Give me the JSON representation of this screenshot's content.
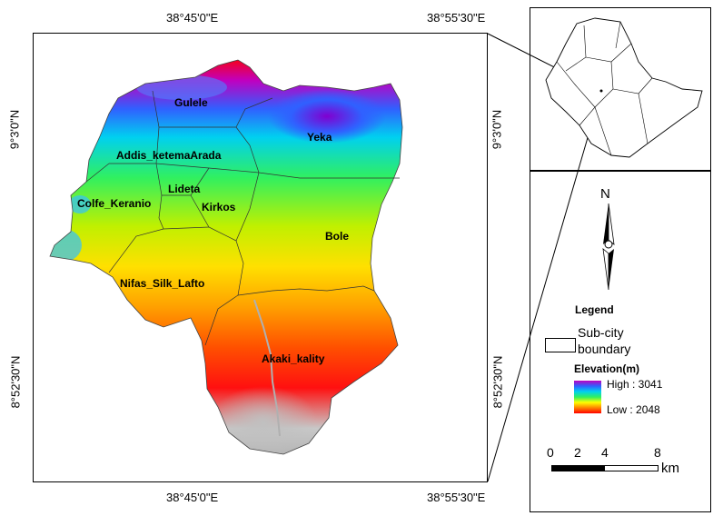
{
  "coordinates": {
    "top_left": "38°45'0\"E",
    "top_right": "38°55'30\"E",
    "bottom_left": "38°45'0\"E",
    "bottom_right": "38°55'30\"E",
    "left_upper": "9°3'0\"N",
    "left_lower": "8°52'30\"N",
    "right_upper": "9°3'0\"N",
    "right_lower": "8°52'30\"N"
  },
  "subcities": {
    "gulele": "Gulele",
    "yeka": "Yeka",
    "addis_ketema_arada": "Addis_ketemaArada",
    "lideta": "Lideta",
    "colfe_keranio": "Colfe_Keranio",
    "kirkos": "Kirkos",
    "bole": "Bole",
    "nifas_silk_lafto": "Nifas_Silk_Lafto",
    "akaki_kality": "Akaki_kality"
  },
  "north_arrow": {
    "label": "N"
  },
  "legend": {
    "title": "Legend",
    "boundary_label_1": "Sub-city",
    "boundary_label_2": "boundary",
    "elevation_title": "Elevation(m)",
    "high": "High : 3041",
    "low": "Low : 2048"
  },
  "scale": {
    "ticks": [
      "0",
      "2",
      "4",
      "8"
    ],
    "unit": "km"
  },
  "colors": {
    "high": "#c000c0",
    "low": "#ff0000",
    "gradient": [
      "#c000c0",
      "#3070ff",
      "#00e0ff",
      "#30ff30",
      "#ffff00",
      "#ff8000",
      "#ff0000"
    ]
  }
}
